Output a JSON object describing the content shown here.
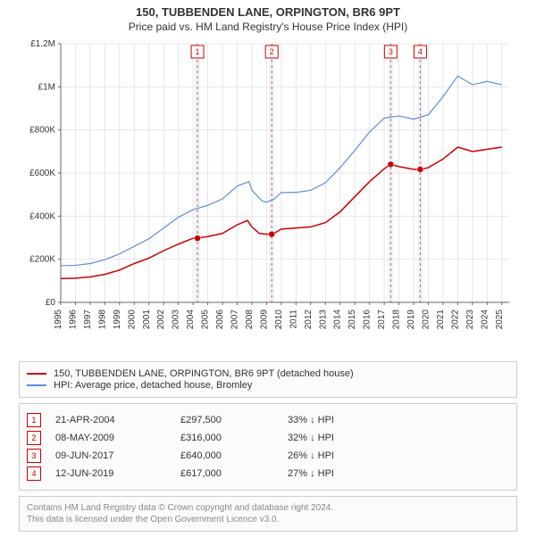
{
  "title_line1": "150, TUBBENDEN LANE, ORPINGTON, BR6 9PT",
  "title_line2": "Price paid vs. HM Land Registry's House Price Index (HPI)",
  "chart": {
    "type": "line",
    "background_color": "#ffffff",
    "grid_color": "#e6e6e6",
    "axis_color": "#666666",
    "xlim": [
      1995,
      2025.5
    ],
    "ylim": [
      0,
      1200000
    ],
    "ytick_step": 200000,
    "yticks": [
      "£0",
      "£200K",
      "£400K",
      "£600K",
      "£800K",
      "£1M",
      "£1.2M"
    ],
    "xticks": [
      1995,
      1996,
      1997,
      1998,
      1999,
      2000,
      2001,
      2002,
      2003,
      2004,
      2005,
      2006,
      2007,
      2008,
      2009,
      2010,
      2011,
      2012,
      2013,
      2014,
      2015,
      2016,
      2017,
      2018,
      2019,
      2020,
      2021,
      2022,
      2023,
      2024,
      2025
    ],
    "event_band_color": "#eef3f9",
    "event_line_color": "#d95b5b",
    "event_line_dash": "3,3",
    "events": [
      {
        "n": "1",
        "x": 2004.3
      },
      {
        "n": "2",
        "x": 2009.35
      },
      {
        "n": "3",
        "x": 2017.44
      },
      {
        "n": "4",
        "x": 2019.45
      }
    ],
    "series": [
      {
        "name": "subject",
        "color": "#cc0000",
        "width": 1.5,
        "points": [
          [
            1995,
            110000
          ],
          [
            1996,
            112000
          ],
          [
            1997,
            118000
          ],
          [
            1998,
            130000
          ],
          [
            1999,
            150000
          ],
          [
            2000,
            180000
          ],
          [
            2001,
            205000
          ],
          [
            2002,
            240000
          ],
          [
            2003,
            270000
          ],
          [
            2004,
            297500
          ],
          [
            2004.5,
            300000
          ],
          [
            2005,
            305000
          ],
          [
            2006,
            320000
          ],
          [
            2007,
            360000
          ],
          [
            2007.7,
            380000
          ],
          [
            2008,
            350000
          ],
          [
            2008.5,
            320000
          ],
          [
            2009,
            316000
          ],
          [
            2009.5,
            320000
          ],
          [
            2010,
            340000
          ],
          [
            2011,
            345000
          ],
          [
            2012,
            350000
          ],
          [
            2013,
            370000
          ],
          [
            2014,
            420000
          ],
          [
            2015,
            490000
          ],
          [
            2016,
            560000
          ],
          [
            2017,
            620000
          ],
          [
            2017.44,
            640000
          ],
          [
            2018,
            630000
          ],
          [
            2019,
            617000
          ],
          [
            2019.5,
            617000
          ],
          [
            2020,
            625000
          ],
          [
            2021,
            665000
          ],
          [
            2022,
            720000
          ],
          [
            2023,
            700000
          ],
          [
            2024,
            710000
          ],
          [
            2025,
            720000
          ]
        ],
        "markers": [
          [
            2004.3,
            297500
          ],
          [
            2009.35,
            316000
          ],
          [
            2017.44,
            640000
          ],
          [
            2019.45,
            617000
          ]
        ]
      },
      {
        "name": "hpi",
        "color": "#5b8fd9",
        "width": 1.2,
        "points": [
          [
            1995,
            170000
          ],
          [
            1996,
            172000
          ],
          [
            1997,
            180000
          ],
          [
            1998,
            198000
          ],
          [
            1999,
            225000
          ],
          [
            2000,
            260000
          ],
          [
            2001,
            295000
          ],
          [
            2002,
            345000
          ],
          [
            2003,
            395000
          ],
          [
            2004,
            430000
          ],
          [
            2005,
            450000
          ],
          [
            2006,
            480000
          ],
          [
            2007,
            540000
          ],
          [
            2007.8,
            560000
          ],
          [
            2008,
            520000
          ],
          [
            2008.7,
            470000
          ],
          [
            2009,
            465000
          ],
          [
            2009.5,
            478000
          ],
          [
            2010,
            510000
          ],
          [
            2011,
            510000
          ],
          [
            2012,
            520000
          ],
          [
            2013,
            555000
          ],
          [
            2014,
            625000
          ],
          [
            2015,
            705000
          ],
          [
            2016,
            790000
          ],
          [
            2017,
            855000
          ],
          [
            2018,
            865000
          ],
          [
            2019,
            850000
          ],
          [
            2020,
            870000
          ],
          [
            2021,
            955000
          ],
          [
            2022,
            1050000
          ],
          [
            2023,
            1010000
          ],
          [
            2024,
            1025000
          ],
          [
            2025,
            1010000
          ]
        ]
      }
    ]
  },
  "legend": {
    "subject_color": "#cc0000",
    "subject_label": "150, TUBBENDEN LANE, ORPINGTON, BR6 9PT (detached house)",
    "hpi_color": "#5b8fd9",
    "hpi_label": "HPI: Average price, detached house, Bromley"
  },
  "transactions": [
    {
      "n": "1",
      "date": "21-APR-2004",
      "price": "£297,500",
      "diff": "33% ↓ HPI"
    },
    {
      "n": "2",
      "date": "08-MAY-2009",
      "price": "£316,000",
      "diff": "32% ↓ HPI"
    },
    {
      "n": "3",
      "date": "09-JUN-2017",
      "price": "£640,000",
      "diff": "26% ↓ HPI"
    },
    {
      "n": "4",
      "date": "12-JUN-2019",
      "price": "£617,000",
      "diff": "27% ↓ HPI"
    }
  ],
  "marker_border_color": "#cc0000",
  "marker_text_color": "#cc0000",
  "license_line1": "Contains HM Land Registry data © Crown copyright and database right 2024.",
  "license_line2": "This data is licensed under the Open Government Licence v3.0."
}
